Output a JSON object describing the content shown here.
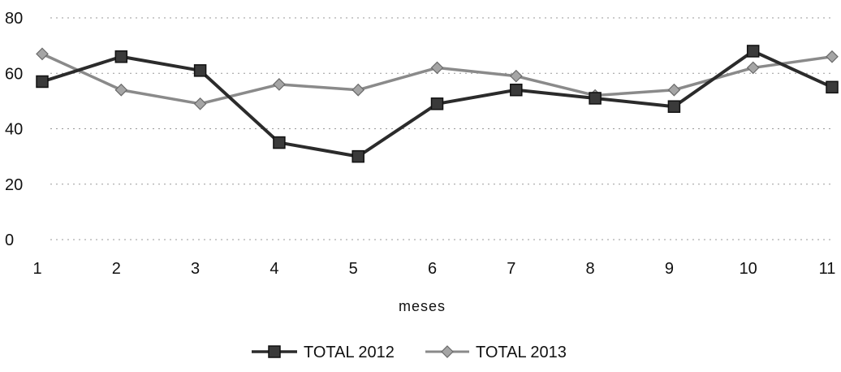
{
  "chart_data": {
    "type": "line",
    "title": "",
    "xlabel": "meses",
    "ylabel": "",
    "x": [
      1,
      2,
      3,
      4,
      5,
      6,
      7,
      8,
      9,
      10,
      11
    ],
    "x_tick_labels": [
      "1",
      "2",
      "3",
      "4",
      "5",
      "6",
      "7",
      "8",
      "9",
      "10",
      "11"
    ],
    "y_tick_labels": [
      "0",
      "20",
      "40",
      "60",
      "80"
    ],
    "ylim": [
      0,
      80
    ],
    "grid": "horizontal dotted",
    "legend_position": "bottom-center",
    "series": [
      {
        "name": "TOTAL 2012",
        "values": [
          57,
          66,
          61,
          35,
          30,
          49,
          54,
          51,
          48,
          68,
          55
        ],
        "color": "#2b2b2b",
        "marker": "square"
      },
      {
        "name": "TOTAL 2013",
        "values": [
          67,
          54,
          49,
          56,
          54,
          62,
          59,
          52,
          54,
          62,
          66
        ],
        "color": "#8a8a8a",
        "marker": "diamond"
      }
    ]
  }
}
